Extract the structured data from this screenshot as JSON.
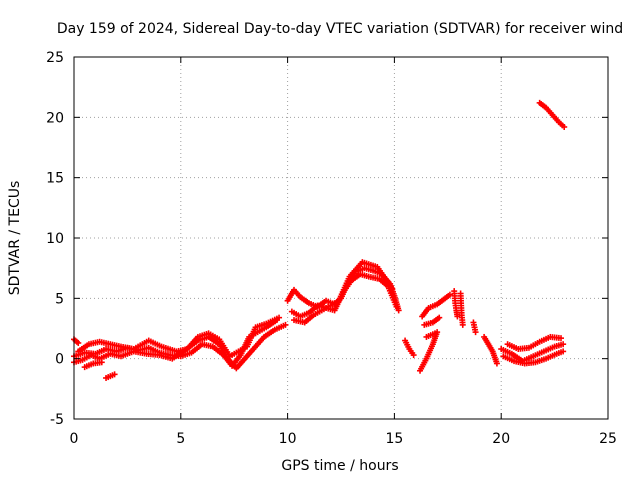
{
  "chart_data": {
    "type": "scatter",
    "title": "Day 159 of 2024, Sidereal Day-to-day VTEC variation (SDTVAR) for receiver wind",
    "xlabel": "GPS time / hours",
    "ylabel": "SDTVAR / TECUs",
    "xlim": [
      0,
      25
    ],
    "ylim": [
      -5,
      25
    ],
    "xticks": [
      0,
      5,
      10,
      15,
      20,
      25
    ],
    "yticks": [
      -5,
      0,
      5,
      10,
      15,
      20,
      25
    ],
    "grid": true,
    "marker": "plus",
    "color": "#ff0000",
    "series": [
      {
        "name": "SDTVAR",
        "segments": [
          {
            "points": [
              [
                0.0,
                0.2
              ],
              [
                0.5,
                0.5
              ],
              [
                1.0,
                0.4
              ],
              [
                1.5,
                0.8
              ],
              [
                2.0,
                0.6
              ],
              [
                2.5,
                0.9
              ],
              [
                3.0,
                0.7
              ],
              [
                3.5,
                0.9
              ],
              [
                4.0,
                0.5
              ],
              [
                4.5,
                0.3
              ],
              [
                5.0,
                0.2
              ],
              [
                5.5,
                0.5
              ],
              [
                6.0,
                1.2
              ],
              [
                6.5,
                1.0
              ],
              [
                7.0,
                0.3
              ],
              [
                7.4,
                -0.6
              ],
              [
                7.8,
                0.3
              ],
              [
                8.2,
                1.8
              ],
              [
                8.6,
                2.2
              ],
              [
                9.0,
                2.6
              ],
              [
                9.5,
                3.2
              ]
            ]
          },
          {
            "points": [
              [
                0.0,
                -0.3
              ],
              [
                0.4,
                -0.1
              ],
              [
                0.8,
                0.3
              ],
              [
                1.2,
                0.0
              ],
              [
                1.7,
                0.4
              ],
              [
                2.2,
                0.2
              ],
              [
                2.8,
                0.6
              ],
              [
                3.4,
                0.4
              ],
              [
                4.0,
                0.3
              ],
              [
                4.6,
                0.0
              ],
              [
                5.2,
                0.7
              ],
              [
                5.8,
                1.5
              ],
              [
                6.3,
                1.8
              ],
              [
                6.8,
                1.2
              ],
              [
                7.2,
                0.0
              ],
              [
                7.6,
                -0.8
              ],
              [
                8.0,
                0.0
              ],
              [
                8.4,
                0.8
              ],
              [
                8.9,
                1.8
              ],
              [
                9.4,
                2.4
              ],
              [
                9.9,
                2.8
              ]
            ]
          },
          {
            "points": [
              [
                0.2,
                0.6
              ],
              [
                0.7,
                1.2
              ],
              [
                1.2,
                1.4
              ],
              [
                1.7,
                1.2
              ],
              [
                2.2,
                1.0
              ],
              [
                2.8,
                0.8
              ],
              [
                3.5,
                1.5
              ],
              [
                4.1,
                1.0
              ],
              [
                4.8,
                0.6
              ],
              [
                5.3,
                0.8
              ],
              [
                5.8,
                1.8
              ],
              [
                6.3,
                2.1
              ],
              [
                6.8,
                1.6
              ],
              [
                7.3,
                0.2
              ],
              [
                8.1,
                1.0
              ],
              [
                8.5,
                2.6
              ],
              [
                9.0,
                2.9
              ],
              [
                9.6,
                3.4
              ]
            ]
          },
          {
            "points": [
              [
                0.5,
                -0.7
              ],
              [
                0.9,
                -0.4
              ],
              [
                1.3,
                -0.3
              ]
            ]
          },
          {
            "points": [
              [
                1.5,
                -1.6
              ],
              [
                1.9,
                -1.3
              ]
            ]
          },
          {
            "points": [
              [
                0.0,
                1.6
              ],
              [
                0.2,
                1.3
              ]
            ]
          },
          {
            "points": [
              [
                10.0,
                4.8
              ],
              [
                10.3,
                5.7
              ],
              [
                10.6,
                5.1
              ],
              [
                11.0,
                4.6
              ],
              [
                11.4,
                4.3
              ],
              [
                11.8,
                4.8
              ],
              [
                12.2,
                4.5
              ],
              [
                12.5,
                5.0
              ],
              [
                12.8,
                6.2
              ],
              [
                13.2,
                7.2
              ],
              [
                13.6,
                7.5
              ],
              [
                14.0,
                7.3
              ],
              [
                14.4,
                7.0
              ],
              [
                14.8,
                6.2
              ],
              [
                15.0,
                5.2
              ],
              [
                15.2,
                4.0
              ]
            ]
          },
          {
            "points": [
              [
                10.2,
                3.9
              ],
              [
                10.6,
                3.5
              ],
              [
                11.0,
                3.8
              ],
              [
                11.4,
                4.4
              ],
              [
                11.8,
                4.2
              ],
              [
                12.2,
                4.0
              ],
              [
                12.6,
                5.5
              ],
              [
                13.0,
                6.5
              ],
              [
                13.4,
                7.0
              ],
              [
                13.8,
                6.8
              ],
              [
                14.3,
                6.6
              ],
              [
                14.7,
                6.0
              ],
              [
                15.1,
                4.3
              ]
            ]
          },
          {
            "points": [
              [
                10.3,
                3.2
              ],
              [
                10.8,
                3.0
              ],
              [
                11.2,
                3.6
              ],
              [
                11.6,
                4.0
              ],
              [
                12.4,
                4.8
              ],
              [
                12.9,
                6.8
              ],
              [
                13.5,
                8.0
              ],
              [
                14.2,
                7.6
              ],
              [
                14.9,
                5.8
              ]
            ]
          },
          {
            "points": [
              [
                15.5,
                1.5
              ],
              [
                15.7,
                0.8
              ],
              [
                15.9,
                0.3
              ]
            ]
          },
          {
            "points": [
              [
                16.2,
                -1.0
              ],
              [
                16.5,
                0.0
              ],
              [
                16.8,
                1.2
              ],
              [
                17.0,
                2.2
              ]
            ]
          },
          {
            "points": [
              [
                16.3,
                3.5
              ],
              [
                16.6,
                4.2
              ],
              [
                17.0,
                4.5
              ],
              [
                17.3,
                4.9
              ],
              [
                17.6,
                5.3
              ]
            ]
          },
          {
            "points": [
              [
                16.4,
                2.8
              ],
              [
                16.8,
                3.0
              ],
              [
                17.1,
                3.4
              ]
            ]
          },
          {
            "points": [
              [
                16.5,
                1.8
              ],
              [
                16.9,
                2.1
              ]
            ]
          },
          {
            "points": [
              [
                17.8,
                5.6
              ],
              [
                17.85,
                4.6
              ],
              [
                17.9,
                4.0
              ],
              [
                17.95,
                3.5
              ]
            ]
          },
          {
            "points": [
              [
                18.1,
                5.4
              ],
              [
                18.12,
                4.6
              ],
              [
                18.15,
                3.6
              ],
              [
                18.2,
                2.8
              ]
            ]
          },
          {
            "points": [
              [
                18.7,
                3.0
              ],
              [
                18.75,
                2.6
              ],
              [
                18.8,
                2.2
              ]
            ]
          },
          {
            "points": [
              [
                19.2,
                1.8
              ],
              [
                19.4,
                1.2
              ],
              [
                19.6,
                0.6
              ],
              [
                19.8,
                -0.4
              ]
            ]
          },
          {
            "points": [
              [
                20.0,
                0.8
              ],
              [
                20.5,
                0.4
              ],
              [
                21.0,
                -0.2
              ],
              [
                21.5,
                0.2
              ],
              [
                22.0,
                0.6
              ],
              [
                22.5,
                1.0
              ],
              [
                22.9,
                1.2
              ]
            ]
          },
          {
            "points": [
              [
                20.1,
                0.2
              ],
              [
                20.6,
                -0.2
              ],
              [
                21.1,
                -0.4
              ],
              [
                21.6,
                -0.3
              ],
              [
                22.1,
                0.0
              ],
              [
                22.6,
                0.4
              ],
              [
                22.9,
                0.6
              ]
            ]
          },
          {
            "points": [
              [
                20.3,
                1.2
              ],
              [
                20.8,
                0.8
              ],
              [
                21.3,
                0.9
              ],
              [
                21.8,
                1.4
              ],
              [
                22.3,
                1.8
              ],
              [
                22.8,
                1.7
              ]
            ]
          },
          {
            "points": [
              [
                21.8,
                21.2
              ],
              [
                22.1,
                20.8
              ],
              [
                22.4,
                20.2
              ],
              [
                22.7,
                19.6
              ],
              [
                22.95,
                19.2
              ]
            ]
          }
        ]
      }
    ]
  }
}
